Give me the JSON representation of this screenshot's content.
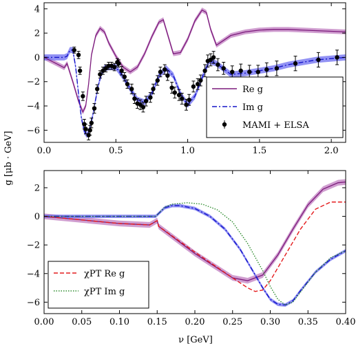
{
  "figure": {
    "ylabel": "g [μb · GeV]",
    "xlabel": "ν [GeV]"
  },
  "chart_data": [
    {
      "type": "line",
      "panel": "top",
      "xlim": [
        0.0,
        2.1
      ],
      "ylim": [
        -7,
        4.5
      ],
      "xticks": [
        0.0,
        0.5,
        1.0,
        1.5,
        2.0
      ],
      "xtick_labels": [
        "0.0",
        "0.5",
        "1.0",
        "1.5",
        "2.0"
      ],
      "yticks": [
        -6,
        -4,
        -2,
        0,
        2,
        4
      ],
      "ytick_labels": [
        "−6",
        "−4",
        "−2",
        "0",
        "2",
        "4"
      ],
      "grid": false,
      "legend_position": "bottom-right",
      "series": [
        {
          "name": "Re g",
          "style": "solid",
          "color": "#7b1a7b",
          "band_color": "#c07ec0",
          "x": [
            0,
            0.05,
            0.1,
            0.14,
            0.16,
            0.2,
            0.24,
            0.27,
            0.29,
            0.31,
            0.33,
            0.36,
            0.39,
            0.42,
            0.45,
            0.5,
            0.55,
            0.6,
            0.65,
            0.7,
            0.75,
            0.8,
            0.83,
            0.87,
            0.9,
            0.95,
            1.0,
            1.05,
            1.1,
            1.13,
            1.16,
            1.2,
            1.25,
            1.3,
            1.4,
            1.5,
            1.6,
            1.7,
            1.8,
            1.9,
            2.0,
            2.1
          ],
          "y": [
            0,
            -0.3,
            -0.6,
            -0.85,
            -0.5,
            -2.0,
            -3.6,
            -4.5,
            -4.0,
            -2.2,
            0.2,
            1.8,
            2.4,
            2.1,
            1.2,
            0.1,
            -0.8,
            -1.2,
            -0.8,
            0.3,
            1.7,
            2.9,
            3.1,
            1.5,
            0.3,
            0.4,
            1.5,
            3.0,
            3.9,
            3.7,
            2.3,
            1.0,
            1.4,
            1.8,
            2.1,
            2.25,
            2.3,
            2.3,
            2.25,
            2.2,
            2.15,
            2.1
          ],
          "band": 0.2
        },
        {
          "name": "Im g",
          "style": "dashdot",
          "color": "#1414c8",
          "band_color": "#6e6ef0",
          "x": [
            0,
            0.1,
            0.14,
            0.16,
            0.18,
            0.2,
            0.22,
            0.24,
            0.26,
            0.28,
            0.3,
            0.32,
            0.34,
            0.36,
            0.38,
            0.4,
            0.42,
            0.45,
            0.5,
            0.55,
            0.6,
            0.65,
            0.7,
            0.75,
            0.8,
            0.85,
            0.9,
            0.95,
            1.0,
            1.05,
            1.1,
            1.15,
            1.2,
            1.3,
            1.4,
            1.5,
            1.6,
            1.7,
            1.8,
            1.9,
            2.0,
            2.1
          ],
          "y": [
            0,
            0,
            0,
            0.1,
            0.6,
            0.6,
            -0.8,
            -3.0,
            -5.0,
            -6.1,
            -6.4,
            -5.8,
            -4.7,
            -3.4,
            -2.2,
            -1.3,
            -0.9,
            -0.8,
            -0.8,
            -1.6,
            -2.6,
            -3.5,
            -3.7,
            -3.0,
            -1.5,
            -0.9,
            -1.5,
            -3.0,
            -3.9,
            -3.2,
            -1.7,
            -0.3,
            -0.5,
            -1.4,
            -1.3,
            -1.1,
            -0.9,
            -0.6,
            -0.4,
            -0.2,
            -0.1,
            0.0
          ],
          "band": 0.25
        }
      ],
      "points": {
        "name": "MAMI + ELSA",
        "x": [
          0.21,
          0.24,
          0.25,
          0.27,
          0.28,
          0.29,
          0.31,
          0.32,
          0.33,
          0.35,
          0.37,
          0.39,
          0.41,
          0.43,
          0.45,
          0.47,
          0.49,
          0.51,
          0.52,
          0.54,
          0.56,
          0.58,
          0.61,
          0.63,
          0.65,
          0.67,
          0.69,
          0.71,
          0.74,
          0.76,
          0.79,
          0.81,
          0.84,
          0.86,
          0.89,
          0.91,
          0.94,
          0.96,
          0.99,
          1.01,
          1.04,
          1.07,
          1.09,
          1.12,
          1.14,
          1.16,
          1.18,
          1.21,
          1.25,
          1.31,
          1.37,
          1.43,
          1.49,
          1.55,
          1.62,
          1.75,
          1.91,
          2.04
        ],
        "y": [
          0.6,
          0.2,
          -1.1,
          -3.2,
          -5.5,
          -5.9,
          -6.4,
          -6.0,
          -5.4,
          -4.2,
          -2.6,
          -1.4,
          -1.1,
          -0.9,
          -0.7,
          -0.7,
          -0.8,
          -0.4,
          -0.5,
          -1.1,
          -1.6,
          -2.2,
          -2.6,
          -3.4,
          -3.8,
          -3.9,
          -4.1,
          -3.6,
          -3.3,
          -2.6,
          -1.9,
          -1.2,
          -1.0,
          -1.5,
          -2.5,
          -2.9,
          -3.1,
          -3.4,
          -3.9,
          -3.5,
          -2.4,
          -2.2,
          -1.9,
          -1.1,
          -0.3,
          -0.2,
          0.0,
          -0.6,
          -0.9,
          -1.2,
          -1.1,
          -1.2,
          -1.2,
          -1.0,
          -0.9,
          -0.5,
          -0.2,
          0.0
        ],
        "err": [
          0.25,
          0.3,
          0.3,
          0.35,
          0.4,
          0.4,
          0.4,
          0.4,
          0.4,
          0.4,
          0.35,
          0.3,
          0.3,
          0.3,
          0.3,
          0.3,
          0.3,
          0.3,
          0.3,
          0.35,
          0.35,
          0.35,
          0.4,
          0.4,
          0.4,
          0.4,
          0.4,
          0.4,
          0.4,
          0.4,
          0.4,
          0.4,
          0.4,
          0.4,
          0.45,
          0.45,
          0.45,
          0.45,
          0.45,
          0.45,
          0.45,
          0.45,
          0.45,
          0.5,
          0.5,
          0.5,
          0.5,
          0.5,
          0.5,
          0.5,
          0.55,
          0.55,
          0.55,
          0.55,
          0.6,
          0.6,
          0.6,
          0.6
        ]
      },
      "legend": [
        "Re g",
        "Im g",
        "MAMI + ELSA"
      ]
    },
    {
      "type": "line",
      "panel": "bottom",
      "xlim": [
        0.0,
        0.4
      ],
      "ylim": [
        -6.8,
        3.2
      ],
      "xticks": [
        0.0,
        0.05,
        0.1,
        0.15,
        0.2,
        0.25,
        0.3,
        0.35,
        0.4
      ],
      "xtick_labels": [
        "0.00",
        "0.05",
        "0.10",
        "0.15",
        "0.20",
        "0.25",
        "0.30",
        "0.35",
        "0.40"
      ],
      "yticks": [
        -6,
        -4,
        -2,
        0,
        2
      ],
      "ytick_labels": [
        "−6",
        "−4",
        "−2",
        "0",
        "2"
      ],
      "grid": false,
      "legend_position": "bottom-left",
      "series": [
        {
          "name": "Re g",
          "style": "solid",
          "color": "#7b1a7b",
          "band_color": "#c07ec0",
          "x": [
            0,
            0.05,
            0.1,
            0.14,
            0.15,
            0.152,
            0.2,
            0.25,
            0.27,
            0.29,
            0.31,
            0.33,
            0.35,
            0.37,
            0.39,
            0.4
          ],
          "y": [
            0,
            -0.25,
            -0.5,
            -0.6,
            -0.3,
            -0.7,
            -2.6,
            -4.3,
            -4.5,
            -4.1,
            -2.7,
            -0.9,
            0.8,
            1.9,
            2.35,
            2.4
          ],
          "band": 0.2
        },
        {
          "name": "Im g",
          "style": "dashdot",
          "color": "#1414c8",
          "band_color": "#6e6ef0",
          "x": [
            0,
            0.148,
            0.152,
            0.16,
            0.17,
            0.18,
            0.2,
            0.22,
            0.24,
            0.26,
            0.28,
            0.29,
            0.3,
            0.31,
            0.32,
            0.33,
            0.34,
            0.36,
            0.38,
            0.4
          ],
          "y": [
            0,
            0,
            0.2,
            0.6,
            0.75,
            0.75,
            0.55,
            0.0,
            -0.9,
            -2.3,
            -4.1,
            -5.0,
            -5.8,
            -6.15,
            -6.2,
            -5.9,
            -5.2,
            -3.9,
            -3.0,
            -2.4
          ],
          "band": 0.12
        },
        {
          "name": "χPT Re g",
          "style": "dashed",
          "color": "#e41a1c",
          "x": [
            0,
            0.05,
            0.1,
            0.14,
            0.15,
            0.152,
            0.2,
            0.25,
            0.27,
            0.28,
            0.29,
            0.3,
            0.32,
            0.34,
            0.36,
            0.38,
            0.4
          ],
          "y": [
            0,
            -0.25,
            -0.5,
            -0.6,
            -0.3,
            -0.7,
            -2.5,
            -4.3,
            -5.0,
            -5.25,
            -5.15,
            -4.5,
            -2.7,
            -0.9,
            0.5,
            1.0,
            1.0
          ],
          "band": 0
        },
        {
          "name": "χPT Im g",
          "style": "dotted",
          "color": "#2a8a2a",
          "x": [
            0,
            0.148,
            0.152,
            0.16,
            0.17,
            0.19,
            0.21,
            0.23,
            0.25,
            0.27,
            0.29,
            0.3,
            0.31,
            0.32,
            0.33,
            0.34,
            0.36,
            0.38,
            0.4
          ],
          "y": [
            0,
            0,
            0.2,
            0.65,
            0.85,
            0.95,
            0.85,
            0.45,
            -0.4,
            -1.9,
            -3.8,
            -4.9,
            -5.8,
            -6.2,
            -6.0,
            -5.3,
            -3.9,
            -2.9,
            -2.4
          ],
          "band": 0
        }
      ],
      "legend": [
        "χPT Re g",
        "χPT Im g"
      ]
    }
  ]
}
